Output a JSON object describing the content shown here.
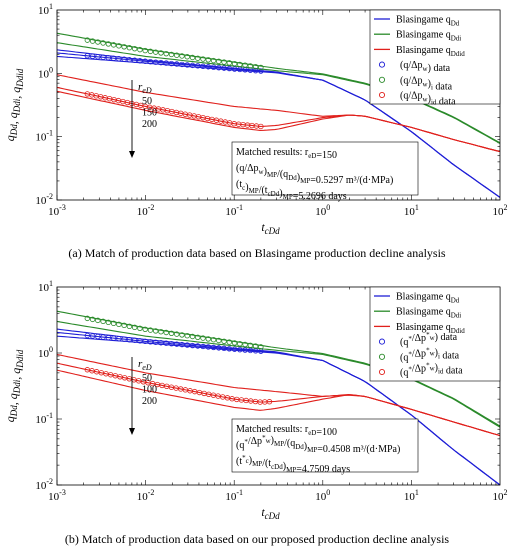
{
  "chart_data": [
    {
      "type": "line",
      "caption": "(a)  Match of production data based on Blasingame production decline analysis",
      "xlabel": "t_cDd",
      "ylabel": "q_Dd, q_Ddi, q_Ddid",
      "xscale": "log",
      "yscale": "log",
      "xlim": [
        0.001,
        100
      ],
      "ylim": [
        0.01,
        10
      ],
      "x_ticks": [
        "10^-3",
        "10^-2",
        "10^-1",
        "10^0",
        "10^1",
        "10^2"
      ],
      "y_ticks": [
        "10^-2",
        "10^-1",
        "10^0",
        "10^1"
      ],
      "legend_position": "top-right",
      "legend": [
        {
          "label": "Blasingame q_Dd",
          "kind": "line",
          "color": "#1f1fd6"
        },
        {
          "label": "Blasingame q_Ddi",
          "kind": "line",
          "color": "#2a8a2a"
        },
        {
          "label": "Blasingame q_Ddid",
          "kind": "line",
          "color": "#e0201c"
        },
        {
          "label": "(q/Δp_w) data",
          "kind": "marker",
          "color": "#1f1fd6"
        },
        {
          "label": "(q/Δp_w)_i data",
          "kind": "marker",
          "color": "#2a8a2a"
        },
        {
          "label": "(q/Δp_w)_id data",
          "kind": "marker",
          "color": "#e0201c"
        }
      ],
      "reD_annotation": {
        "title": "r_eD",
        "values": [
          "50",
          "150",
          "200"
        ]
      },
      "results_box": {
        "title": "Matched results: r_eD=150",
        "line1": "(q/Δp_w)_MP/(q_Dd)_MP=0.5297 m³/(d·MPa)",
        "line2": "(t_c)_MP/(t_cDd)_MP=5.2696 days"
      },
      "series": [
        {
          "name": "q_Dd, r_eD=50",
          "color": "#1f1fd6",
          "x": [
            0.001,
            0.01,
            0.1,
            0.3,
            1,
            3,
            10,
            30,
            100
          ],
          "y": [
            1.85,
            1.45,
            1.12,
            1.02,
            0.78,
            0.38,
            0.12,
            0.036,
            0.011
          ]
        },
        {
          "name": "q_Dd, r_eD=150",
          "color": "#1f1fd6",
          "x": [
            0.001,
            0.01,
            0.1,
            0.3,
            1,
            3,
            10,
            30,
            100
          ],
          "y": [
            2.1,
            1.55,
            1.17,
            1.04,
            0.78,
            0.38,
            0.12,
            0.036,
            0.011
          ]
        },
        {
          "name": "q_Dd, r_eD=200",
          "color": "#1f1fd6",
          "x": [
            0.001,
            0.01,
            0.1,
            0.3,
            1,
            3,
            10,
            30,
            100
          ],
          "y": [
            2.35,
            1.62,
            1.2,
            1.05,
            0.78,
            0.38,
            0.12,
            0.036,
            0.011
          ]
        },
        {
          "name": "q_Ddi, r_eD=50",
          "color": "#2a8a2a",
          "x": [
            0.001,
            0.01,
            0.1,
            0.3,
            1,
            3,
            10,
            30,
            100
          ],
          "y": [
            3.05,
            1.85,
            1.3,
            1.1,
            0.95,
            0.68,
            0.4,
            0.2,
            0.078
          ]
        },
        {
          "name": "q_Ddi, r_eD=200",
          "color": "#2a8a2a",
          "x": [
            0.001,
            0.01,
            0.1,
            0.3,
            1,
            3,
            10,
            30,
            100
          ],
          "y": [
            4.3,
            2.4,
            1.5,
            1.2,
            0.98,
            0.7,
            0.41,
            0.205,
            0.08
          ]
        },
        {
          "name": "q_Ddid, r_eD=50",
          "color": "#e0201c",
          "x": [
            0.001,
            0.01,
            0.1,
            0.3,
            1,
            2,
            3,
            10,
            30,
            100
          ],
          "y": [
            0.95,
            0.5,
            0.3,
            0.26,
            0.21,
            0.22,
            0.21,
            0.14,
            0.09,
            0.058
          ]
        },
        {
          "name": "q_Ddid, r_eD=150",
          "color": "#e0201c",
          "x": [
            0.001,
            0.01,
            0.1,
            0.2,
            0.3,
            1,
            2,
            3,
            10,
            30,
            100
          ],
          "y": [
            0.6,
            0.3,
            0.16,
            0.145,
            0.15,
            0.2,
            0.22,
            0.21,
            0.14,
            0.09,
            0.058
          ]
        },
        {
          "name": "q_Ddid, r_eD=200",
          "color": "#e0201c",
          "x": [
            0.001,
            0.01,
            0.1,
            0.2,
            0.3,
            1,
            2,
            3,
            10,
            30,
            100
          ],
          "y": [
            0.52,
            0.26,
            0.14,
            0.125,
            0.13,
            0.19,
            0.22,
            0.21,
            0.14,
            0.09,
            0.058
          ]
        }
      ],
      "data_points": [
        {
          "name": "(q/Δp_w) data",
          "color": "#1f1fd6",
          "x_range": [
            0.0022,
            0.2
          ],
          "curve": "q_Dd, r_eD=150",
          "count": 34
        },
        {
          "name": "(q/Δp_w)_i data",
          "color": "#2a8a2a",
          "x_range": [
            0.0022,
            0.2
          ],
          "curve": "q_Ddi, r_eD=200",
          "count": 34,
          "scale": 0.95
        },
        {
          "name": "(q/Δp_w)_id data",
          "color": "#e0201c",
          "x_range": [
            0.0022,
            0.2
          ],
          "curve": "q_Ddid, r_eD=150",
          "count": 40
        }
      ]
    },
    {
      "type": "line",
      "caption": "(b)  Match of production data based on our proposed production decline analysis",
      "xlabel": "t_cDd",
      "ylabel": "q_Dd, q_Ddi, q_Ddid",
      "xscale": "log",
      "yscale": "log",
      "xlim": [
        0.001,
        100
      ],
      "ylim": [
        0.01,
        10
      ],
      "x_ticks": [
        "10^-3",
        "10^-2",
        "10^-1",
        "10^0",
        "10^1",
        "10^2"
      ],
      "y_ticks": [
        "10^-2",
        "10^-1",
        "10^0",
        "10^1"
      ],
      "legend_position": "top-right",
      "legend": [
        {
          "label": "Blasingame q_Dd",
          "kind": "line",
          "color": "#1f1fd6"
        },
        {
          "label": "Blasingame q_Ddi",
          "kind": "line",
          "color": "#2a8a2a"
        },
        {
          "label": "Blasingame q_Ddid",
          "kind": "line",
          "color": "#e0201c"
        },
        {
          "label": "(q*/Δp*_w) data",
          "kind": "marker",
          "color": "#1f1fd6"
        },
        {
          "label": "(q*/Δp*_w)_i data",
          "kind": "marker",
          "color": "#2a8a2a"
        },
        {
          "label": "(q*/Δp*_w)_id data",
          "kind": "marker",
          "color": "#e0201c"
        }
      ],
      "reD_annotation": {
        "title": "r_eD",
        "values": [
          "50",
          "100",
          "200"
        ]
      },
      "results_box": {
        "title": "Matched results: r_eD=100",
        "line1": "(q*/Δp*_w)_MP/(q_Dd)_MP=0.4508 m³/(d·MPa)",
        "line2": "(t*_c)_MP/(t_cDd)_MP=4.7509 days"
      },
      "series": [
        {
          "name": "q_Dd, r_eD=50",
          "color": "#1f1fd6",
          "x": [
            0.001,
            0.01,
            0.1,
            0.3,
            1,
            3,
            10,
            30,
            100
          ],
          "y": [
            1.8,
            1.42,
            1.1,
            1.0,
            0.77,
            0.37,
            0.115,
            0.034,
            0.01
          ]
        },
        {
          "name": "q_Dd, r_eD=100",
          "color": "#1f1fd6",
          "x": [
            0.001,
            0.01,
            0.1,
            0.3,
            1,
            3,
            10,
            30,
            100
          ],
          "y": [
            2.05,
            1.5,
            1.14,
            1.02,
            0.77,
            0.37,
            0.115,
            0.034,
            0.01
          ]
        },
        {
          "name": "q_Dd, r_eD=200",
          "color": "#1f1fd6",
          "x": [
            0.001,
            0.01,
            0.1,
            0.3,
            1,
            3,
            10,
            30,
            100
          ],
          "y": [
            2.3,
            1.6,
            1.18,
            1.04,
            0.77,
            0.37,
            0.115,
            0.034,
            0.01
          ]
        },
        {
          "name": "q_Ddi, r_eD=50",
          "color": "#2a8a2a",
          "x": [
            0.001,
            0.01,
            0.1,
            0.3,
            1,
            3,
            10,
            30,
            100
          ],
          "y": [
            3.0,
            1.8,
            1.28,
            1.1,
            0.95,
            0.68,
            0.4,
            0.2,
            0.075
          ]
        },
        {
          "name": "q_Ddi, r_eD=200",
          "color": "#2a8a2a",
          "x": [
            0.001,
            0.01,
            0.1,
            0.3,
            1,
            3,
            10,
            30,
            100
          ],
          "y": [
            4.3,
            2.4,
            1.5,
            1.2,
            0.98,
            0.7,
            0.41,
            0.205,
            0.078
          ]
        },
        {
          "name": "q_Ddid, r_eD=50",
          "color": "#e0201c",
          "x": [
            0.001,
            0.01,
            0.1,
            0.3,
            1,
            2,
            3,
            10,
            30,
            100
          ],
          "y": [
            0.95,
            0.5,
            0.3,
            0.26,
            0.22,
            0.23,
            0.22,
            0.14,
            0.09,
            0.056
          ]
        },
        {
          "name": "q_Ddid, r_eD=100",
          "color": "#e0201c",
          "x": [
            0.001,
            0.01,
            0.1,
            0.2,
            0.3,
            1,
            2,
            3,
            10,
            30,
            100
          ],
          "y": [
            0.7,
            0.36,
            0.2,
            0.18,
            0.185,
            0.22,
            0.235,
            0.22,
            0.14,
            0.09,
            0.056
          ]
        },
        {
          "name": "q_Ddid, r_eD=200",
          "color": "#e0201c",
          "x": [
            0.001,
            0.01,
            0.1,
            0.2,
            0.3,
            1,
            2,
            3,
            10,
            30,
            100
          ],
          "y": [
            0.55,
            0.27,
            0.15,
            0.135,
            0.145,
            0.2,
            0.235,
            0.22,
            0.14,
            0.09,
            0.056
          ]
        }
      ],
      "data_points": [
        {
          "name": "(q*/Δp*_w) data",
          "color": "#1f1fd6",
          "x_range": [
            0.0022,
            0.2
          ],
          "curve": "q_Dd, r_eD=100",
          "count": 34
        },
        {
          "name": "(q*/Δp*_w)_i data",
          "color": "#2a8a2a",
          "x_range": [
            0.0022,
            0.2
          ],
          "curve": "q_Ddi, r_eD=200",
          "count": 34,
          "scale": 0.95
        },
        {
          "name": "(q*/Δp*_w)_id data",
          "color": "#e0201c",
          "x_range": [
            0.0022,
            0.25
          ],
          "curve": "q_Ddid, r_eD=100",
          "count": 40
        }
      ]
    }
  ]
}
